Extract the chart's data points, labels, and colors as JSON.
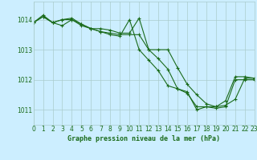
{
  "title": "Graphe pression niveau de la mer (hPa)",
  "bg_color": "#cceeff",
  "grid_color": "#aacccc",
  "line_color": "#1a6b1a",
  "xlim": [
    0,
    23
  ],
  "ylim": [
    1010.5,
    1014.6
  ],
  "yticks": [
    1011,
    1012,
    1013,
    1014
  ],
  "xticks": [
    0,
    1,
    2,
    3,
    4,
    5,
    6,
    7,
    8,
    9,
    10,
    11,
    12,
    13,
    14,
    15,
    16,
    17,
    18,
    19,
    20,
    21,
    22,
    23
  ],
  "series1_x": [
    0,
    1,
    2,
    3,
    4,
    5,
    6,
    7,
    8,
    9,
    10,
    11,
    12,
    13,
    14,
    15,
    16,
    17,
    18,
    19,
    20,
    21,
    22,
    23
  ],
  "series1_y": [
    1013.9,
    1014.15,
    1013.9,
    1014.0,
    1014.05,
    1013.85,
    1013.7,
    1013.6,
    1013.55,
    1013.5,
    1013.5,
    1013.5,
    1013.0,
    1013.0,
    1013.0,
    1012.4,
    1011.85,
    1011.5,
    1011.2,
    1011.1,
    1011.3,
    1012.1,
    1012.1,
    1012.05
  ],
  "series2_x": [
    0,
    1,
    2,
    3,
    4,
    5,
    6,
    7,
    8,
    9,
    10,
    11,
    12,
    13,
    14,
    15,
    16,
    17,
    18,
    19,
    20,
    21,
    22,
    23
  ],
  "series2_y": [
    1013.9,
    1014.1,
    1013.9,
    1013.8,
    1014.0,
    1013.8,
    1013.7,
    1013.7,
    1013.65,
    1013.55,
    1013.55,
    1014.05,
    1013.0,
    1012.7,
    1012.35,
    1011.7,
    1011.55,
    1011.1,
    1011.1,
    1011.05,
    1011.1,
    1012.0,
    1012.0,
    1012.0
  ],
  "series3_x": [
    0,
    1,
    2,
    3,
    4,
    5,
    6,
    7,
    8,
    9,
    10,
    11,
    12,
    13,
    14,
    15,
    16,
    17,
    18,
    19,
    20,
    21,
    22,
    23
  ],
  "series3_y": [
    1013.9,
    1014.1,
    1013.9,
    1014.0,
    1014.0,
    1013.85,
    1013.7,
    1013.6,
    1013.5,
    1013.45,
    1014.0,
    1013.0,
    1012.65,
    1012.3,
    1011.8,
    1011.7,
    1011.6,
    1011.0,
    1011.1,
    1011.1,
    1011.15,
    1011.35,
    1012.05,
    1012.05
  ]
}
